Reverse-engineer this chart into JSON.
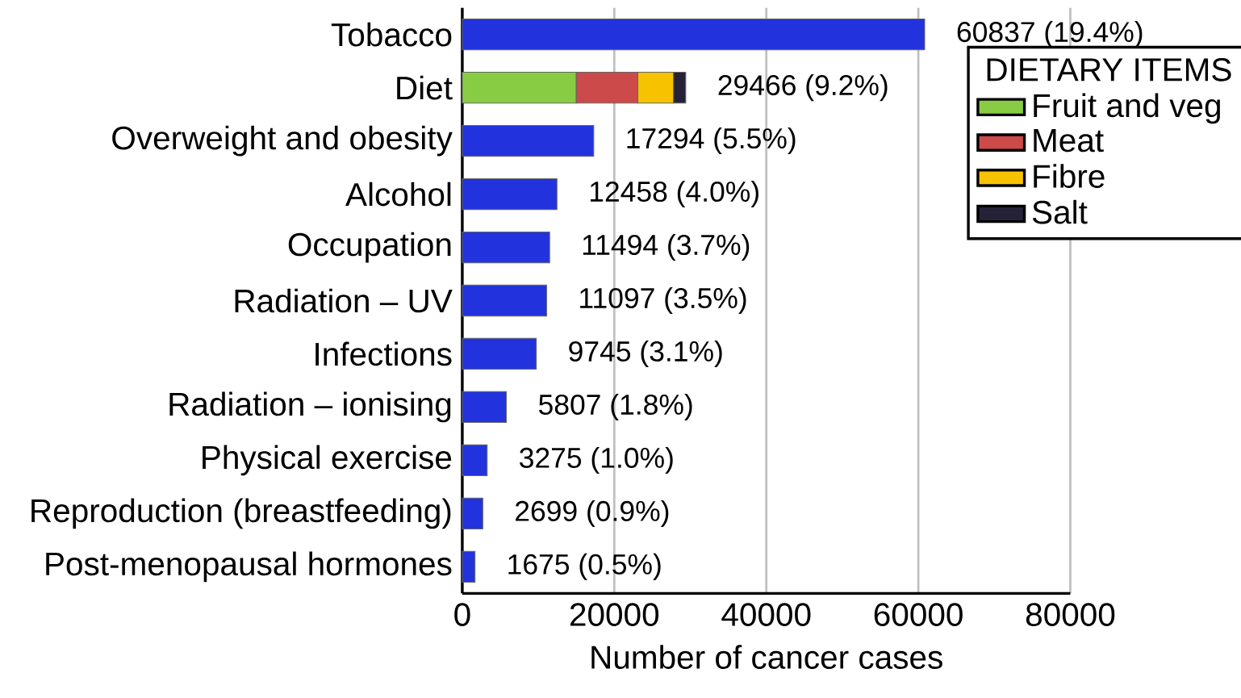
{
  "chart_data": {
    "type": "bar",
    "orientation": "horizontal",
    "stacked": true,
    "xlabel": "Number of cancer cases",
    "categories": [
      "Tobacco",
      "Diet",
      "Overweight and obesity",
      "Alcohol",
      "Occupation",
      "Radiation – UV",
      "Infections",
      "Radiation – ionising",
      "Physical exercise",
      "Reproduction (breastfeeding)",
      "Post-menopausal hormones"
    ],
    "series": [
      {
        "color": "#2233dd",
        "values": [
          60837,
          null,
          17294,
          12458,
          11494,
          11097,
          9745,
          5807,
          3275,
          2699,
          1675
        ]
      },
      {
        "name": "Fruit and veg",
        "color": "#88cc44",
        "values": [
          null,
          15000,
          null,
          null,
          null,
          null,
          null,
          null,
          null,
          null,
          null
        ]
      },
      {
        "name": "Meat",
        "color": "#cc4a4a",
        "values": [
          null,
          8100,
          null,
          null,
          null,
          null,
          null,
          null,
          null,
          null,
          null
        ]
      },
      {
        "name": "Fibre",
        "color": "#f7c200",
        "values": [
          null,
          4700,
          null,
          null,
          null,
          null,
          null,
          null,
          null,
          null,
          null
        ]
      },
      {
        "name": "Salt",
        "color": "#252238",
        "values": [
          null,
          1600,
          null,
          null,
          null,
          null,
          null,
          null,
          null,
          null,
          null
        ]
      }
    ],
    "totals": [
      "60837 (19.4%)",
      "29466 (9.2%)",
      "17294 (5.5%)",
      "12458 (4.0%)",
      "11494 (3.7%)",
      "11097 (3.5%)",
      "9745 (3.1%)",
      "5807 (1.8%)",
      "3275 (1.0%)",
      "2699 (0.9%)",
      "1675 (0.5%)"
    ],
    "legend_title": "DIETARY ITEMS",
    "legend": "top right",
    "grid": "x",
    "xlim": [
      0,
      80000
    ],
    "xticks": [
      0,
      20000,
      40000,
      60000,
      80000
    ]
  }
}
